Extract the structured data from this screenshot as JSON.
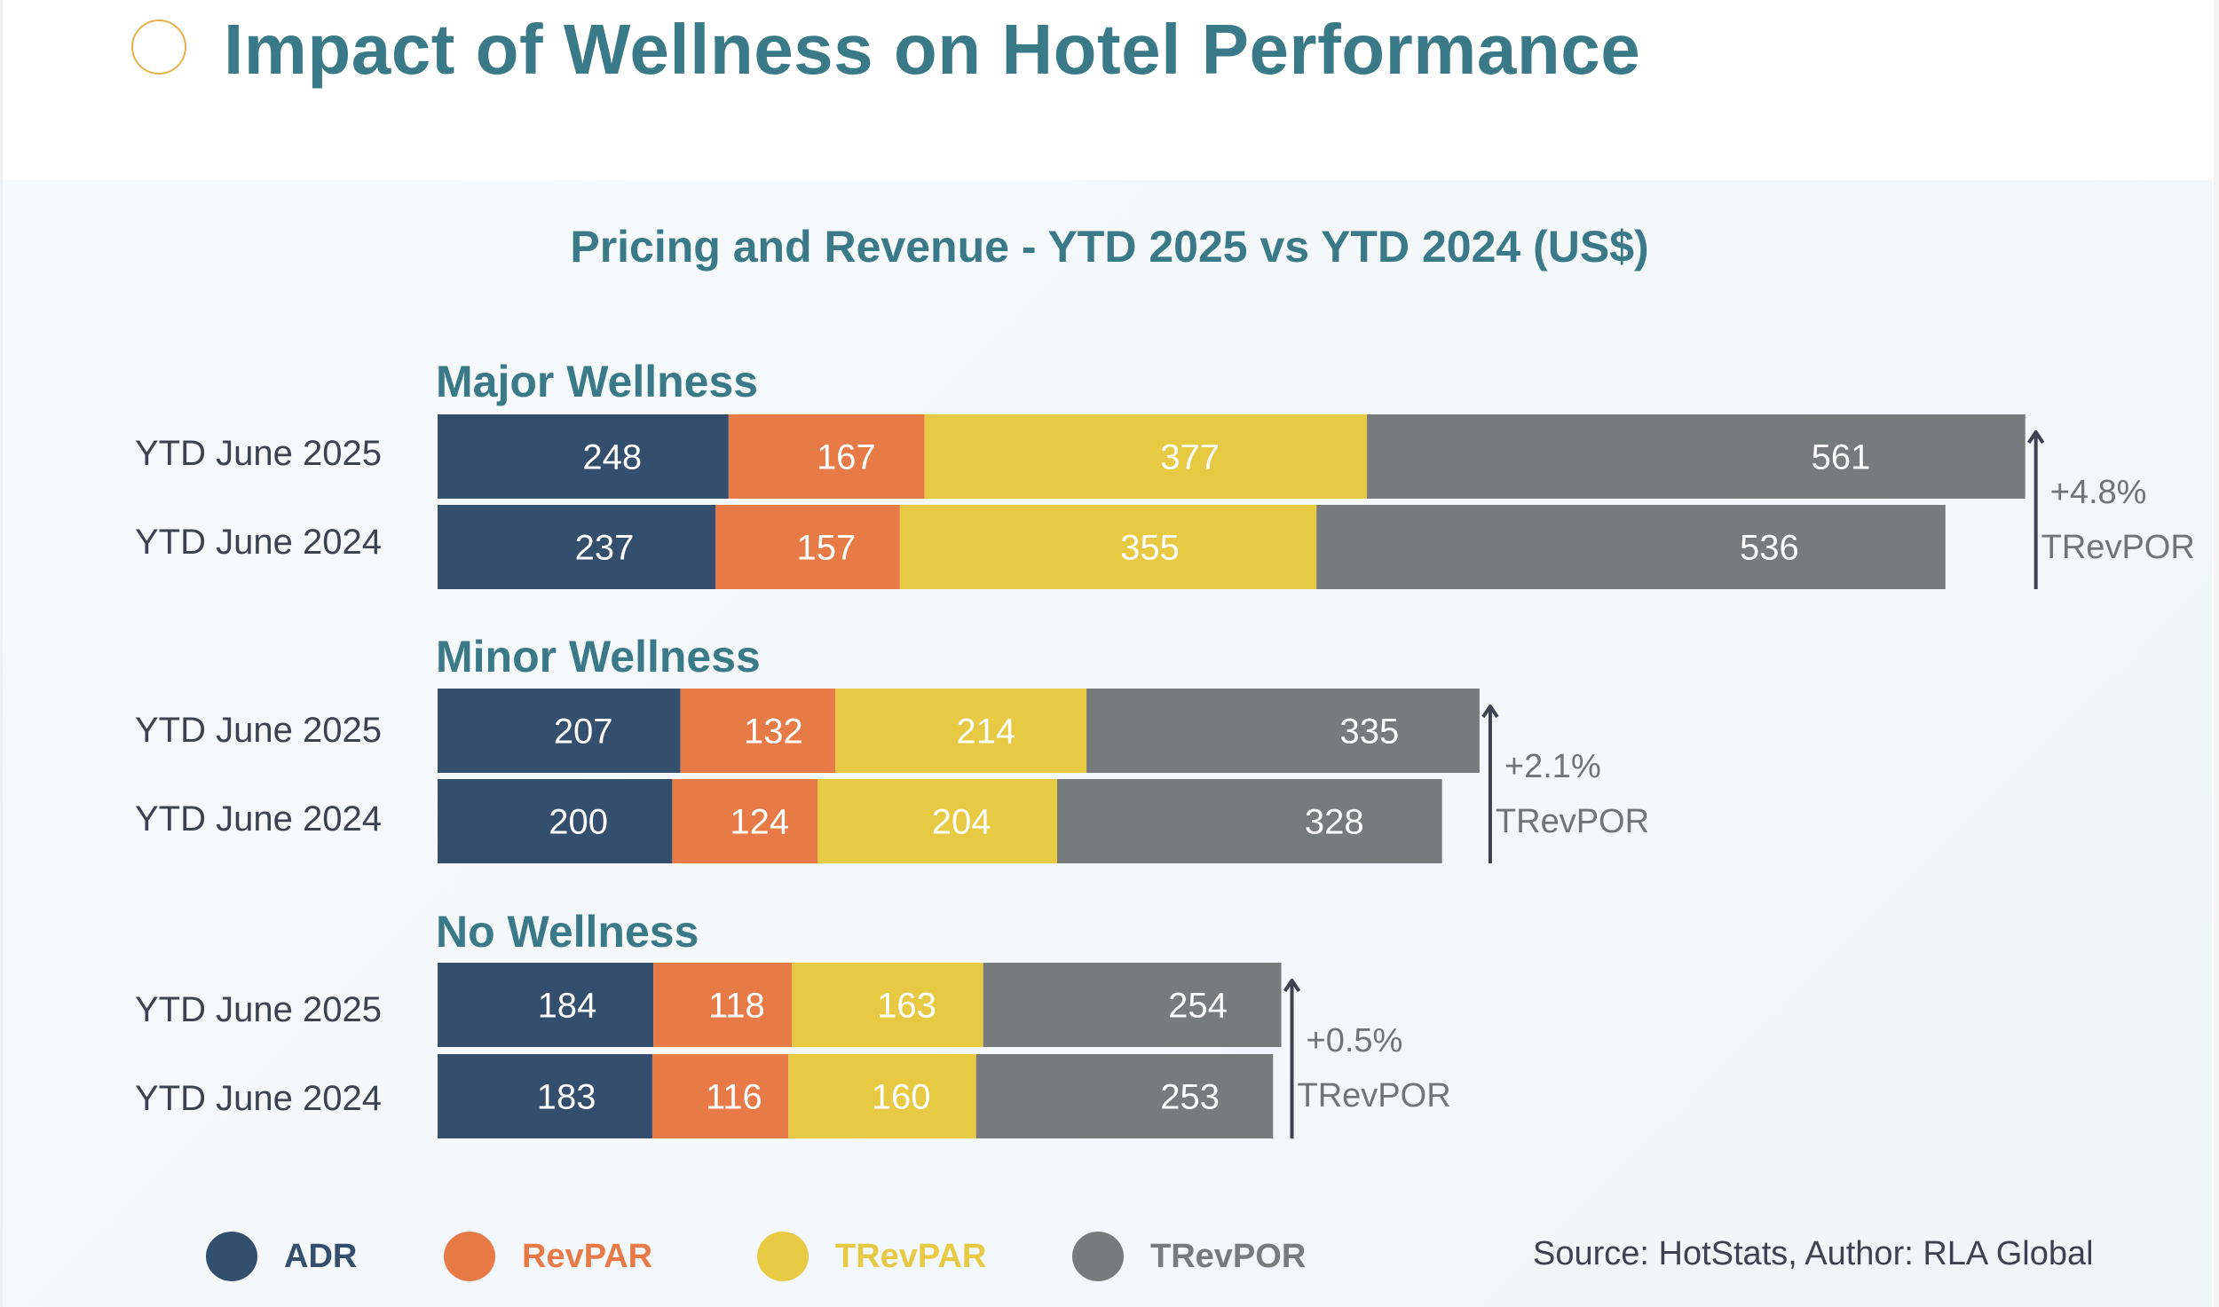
{
  "page": {
    "title": "Impact of Wellness on Hotel Performance"
  },
  "legend": [
    {
      "key": "ADR",
      "label": "ADR",
      "color": "#344e6e"
    },
    {
      "key": "RevPAR",
      "label": "RevPAR",
      "color": "#e77a47"
    },
    {
      "key": "TRevPAR",
      "label": "TRevPAR",
      "color": "#e8c943"
    },
    {
      "key": "TRevPOR",
      "label": "TRevPOR",
      "color": "#787b7c"
    }
  ],
  "source": "Source: HotStats, Author: RLA Global",
  "chart_data": {
    "type": "bar",
    "orientation": "horizontal",
    "stacked": true,
    "title": "Pricing and Revenue - YTD 2025 vs YTD 2024 (US$)",
    "xlabel": "",
    "ylabel": "",
    "grid": false,
    "legend_position": "bottom",
    "series_names": [
      "ADR",
      "RevPAR",
      "TRevPAR",
      "TRevPOR"
    ],
    "groups": [
      {
        "name": "Major Wellness",
        "rows": [
          {
            "label": "YTD June 2025",
            "values": [
              248,
              167,
              377,
              561
            ]
          },
          {
            "label": "YTD June 2024",
            "values": [
              237,
              157,
              355,
              536
            ]
          }
        ],
        "change": {
          "value": "+4.8%",
          "metric": "TRevPOR",
          "direction": "up"
        }
      },
      {
        "name": "Minor Wellness",
        "rows": [
          {
            "label": "YTD June 2025",
            "values": [
              207,
              132,
              214,
              335
            ]
          },
          {
            "label": "YTD June 2024",
            "values": [
              200,
              124,
              204,
              328
            ]
          }
        ],
        "change": {
          "value": "+2.1%",
          "metric": "TRevPOR",
          "direction": "up"
        }
      },
      {
        "name": "No Wellness",
        "rows": [
          {
            "label": "YTD June 2025",
            "values": [
              184,
              118,
              163,
              254
            ]
          },
          {
            "label": "YTD June 2024",
            "values": [
              183,
              116,
              160,
              253
            ]
          }
        ],
        "change": {
          "value": "+0.5%",
          "metric": "TRevPOR",
          "direction": "up"
        }
      }
    ]
  }
}
